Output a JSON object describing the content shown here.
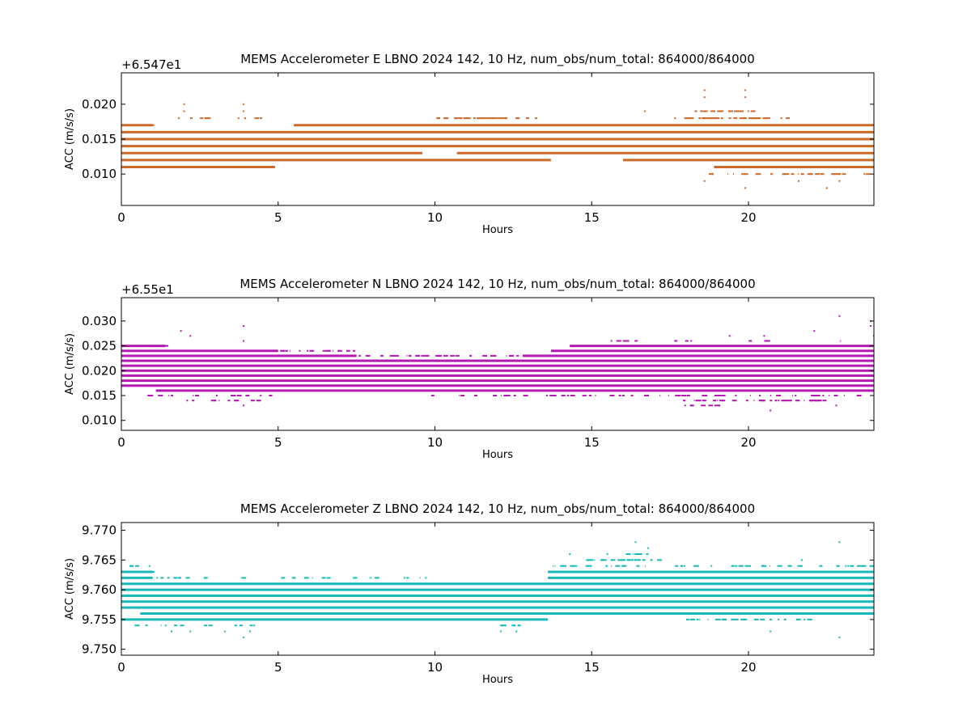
{
  "chart_data": [
    {
      "type": "scatter",
      "title": "MEMS Accelerometer E LBNO 2024 142, 10 Hz, num_obs/num_total: 864000/864000",
      "offset_label": "+6.547e1",
      "xlabel": "Hours",
      "ylabel": "ACC (m/s/s)",
      "xlim": [
        0,
        24
      ],
      "ylim": [
        0.0055,
        0.0245
      ],
      "xticks": [
        0,
        5,
        10,
        15,
        20
      ],
      "yticks": [
        0.01,
        0.015,
        0.02
      ],
      "ytick_labels": [
        "0.010",
        "0.015",
        "0.020"
      ],
      "xtick_labels": [
        "0",
        "5",
        "10",
        "15",
        "20"
      ],
      "color": "#cc6a2b",
      "grid": false,
      "dense_levels": [
        0.011,
        0.012,
        0.013,
        0.014,
        0.015,
        0.016,
        0.017
      ],
      "level_gaps": [
        {
          "level": 0.011,
          "from": 4.9,
          "to": 18.9
        },
        {
          "level": 0.012,
          "from": 13.7,
          "to": 16.0
        },
        {
          "level": 0.017,
          "from": 1.0,
          "to": 5.5
        },
        {
          "level": 0.013,
          "from": 9.6,
          "to": 10.7
        }
      ],
      "sparse_levels": [
        {
          "level": 0.017,
          "range": [
            0.2,
            1.0
          ],
          "count": 12
        },
        {
          "level": 0.018,
          "range": [
            1.3,
            4.5
          ],
          "count": 10
        },
        {
          "level": 0.018,
          "range": [
            10.0,
            13.2
          ],
          "count": 34
        },
        {
          "level": 0.018,
          "range": [
            17.6,
            21.3
          ],
          "count": 40
        },
        {
          "level": 0.019,
          "range": [
            18.2,
            20.2
          ],
          "count": 20
        },
        {
          "level": 0.011,
          "range": [
            0.3,
            3.0
          ],
          "count": 10
        },
        {
          "level": 0.01,
          "range": [
            18.5,
            23.9
          ],
          "count": 28
        }
      ],
      "outliers": [
        [
          2.0,
          0.02
        ],
        [
          2.0,
          0.019
        ],
        [
          3.9,
          0.02
        ],
        [
          3.9,
          0.019
        ],
        [
          3.9,
          0.011
        ],
        [
          2.7,
          0.011
        ],
        [
          18.6,
          0.022
        ],
        [
          18.6,
          0.021
        ],
        [
          19.9,
          0.022
        ],
        [
          19.9,
          0.021
        ],
        [
          18.6,
          0.009
        ],
        [
          19.9,
          0.008
        ],
        [
          22.5,
          0.008
        ],
        [
          22.9,
          0.009
        ],
        [
          21.6,
          0.009
        ],
        [
          16.7,
          0.019
        ],
        [
          4.5,
          0.012
        ],
        [
          4.6,
          0.012
        ],
        [
          23.7,
          0.01
        ]
      ]
    },
    {
      "type": "scatter",
      "title": "MEMS Accelerometer N LBNO 2024 142, 10 Hz, num_obs/num_total: 864000/864000",
      "offset_label": "+6.55e1",
      "xlabel": "Hours",
      "ylabel": "ACC (m/s/s)",
      "xlim": [
        0,
        24
      ],
      "ylim": [
        0.008,
        0.0347
      ],
      "xticks": [
        0,
        5,
        10,
        15,
        20
      ],
      "yticks": [
        0.01,
        0.015,
        0.02,
        0.025,
        0.03
      ],
      "ytick_labels": [
        "0.010",
        "0.015",
        "0.020",
        "0.025",
        "0.030"
      ],
      "xtick_labels": [
        "0",
        "5",
        "10",
        "15",
        "20"
      ],
      "color": "#b21ab2",
      "grid": false,
      "dense_levels": [
        0.016,
        0.017,
        0.018,
        0.019,
        0.02,
        0.021,
        0.022,
        0.023,
        0.024,
        0.025
      ],
      "level_gaps": [
        {
          "level": 0.025,
          "from": 1.4,
          "to": 14.3
        },
        {
          "level": 0.024,
          "from": 5.0,
          "to": 13.7
        },
        {
          "level": 0.023,
          "from": 7.5,
          "to": 12.8
        },
        {
          "level": 0.016,
          "from": 0.0,
          "to": 1.1
        }
      ],
      "sparse_levels": [
        {
          "level": 0.025,
          "range": [
            0.1,
            1.4
          ],
          "count": 10
        },
        {
          "level": 0.024,
          "range": [
            5.0,
            7.4
          ],
          "count": 22
        },
        {
          "level": 0.023,
          "range": [
            7.5,
            12.8
          ],
          "count": 36
        },
        {
          "level": 0.015,
          "range": [
            0.2,
            4.9
          ],
          "count": 20
        },
        {
          "level": 0.015,
          "range": [
            9.8,
            23.6
          ],
          "count": 60
        },
        {
          "level": 0.014,
          "range": [
            1.7,
            4.4
          ],
          "count": 10
        },
        {
          "level": 0.014,
          "range": [
            17.9,
            22.5
          ],
          "count": 40
        },
        {
          "level": 0.013,
          "range": [
            17.9,
            20.0
          ],
          "count": 10
        },
        {
          "level": 0.026,
          "range": [
            15.5,
            23.9
          ],
          "count": 12
        }
      ],
      "outliers": [
        [
          1.9,
          0.028
        ],
        [
          2.2,
          0.027
        ],
        [
          3.9,
          0.029
        ],
        [
          3.9,
          0.026
        ],
        [
          3.9,
          0.013
        ],
        [
          22.9,
          0.031
        ],
        [
          22.1,
          0.028
        ],
        [
          20.7,
          0.012
        ],
        [
          23.9,
          0.029
        ],
        [
          23.9,
          0.03
        ],
        [
          20.5,
          0.027
        ],
        [
          19.4,
          0.027
        ],
        [
          2.1,
          0.014
        ],
        [
          22.8,
          0.013
        ],
        [
          24.0,
          0.027
        ]
      ]
    },
    {
      "type": "scatter",
      "title": "MEMS Accelerometer Z LBNO 2024 142, 10 Hz, num_obs/num_total: 864000/864000",
      "offset_label": "",
      "xlabel": "Hours",
      "ylabel": "ACC (m/s/s)",
      "xlim": [
        0,
        24
      ],
      "ylim": [
        9.749,
        9.7713
      ],
      "xticks": [
        0,
        5,
        10,
        15,
        20
      ],
      "yticks": [
        9.75,
        9.755,
        9.76,
        9.765,
        9.77
      ],
      "ytick_labels": [
        "9.750",
        "9.755",
        "9.760",
        "9.765",
        "9.770"
      ],
      "xtick_labels": [
        "0",
        "5",
        "10",
        "15",
        "20"
      ],
      "color": "#1ab8b8",
      "grid": false,
      "dense_levels": [
        9.755,
        9.756,
        9.757,
        9.758,
        9.759,
        9.76,
        9.761,
        9.762,
        9.763
      ],
      "level_gaps": [
        {
          "level": 9.755,
          "from": 13.6,
          "to": 24.0
        },
        {
          "level": 9.762,
          "from": 1.0,
          "to": 13.6
        },
        {
          "level": 9.763,
          "from": 1.0,
          "to": 13.6
        },
        {
          "level": 9.756,
          "from": 0.0,
          "to": 0.6
        }
      ],
      "sparse_levels": [
        {
          "level": 9.762,
          "range": [
            1.0,
            10.5
          ],
          "count": 30
        },
        {
          "level": 9.763,
          "range": [
            0.1,
            1.0
          ],
          "count": 10
        },
        {
          "level": 9.764,
          "range": [
            0.1,
            1.0
          ],
          "count": 6
        },
        {
          "level": 9.764,
          "range": [
            13.6,
            23.9
          ],
          "count": 50
        },
        {
          "level": 9.765,
          "range": [
            14.8,
            17.3
          ],
          "count": 22
        },
        {
          "level": 9.766,
          "range": [
            15.9,
            16.8
          ],
          "count": 8
        },
        {
          "level": 9.754,
          "range": [
            0.3,
            4.5
          ],
          "count": 12
        },
        {
          "level": 9.754,
          "range": [
            12.0,
            12.7
          ],
          "count": 6
        },
        {
          "level": 9.755,
          "range": [
            18.0,
            22.0
          ],
          "count": 30
        }
      ],
      "outliers": [
        [
          16.4,
          9.768
        ],
        [
          22.9,
          9.768
        ],
        [
          22.9,
          9.752
        ],
        [
          3.9,
          9.752
        ],
        [
          4.1,
          9.753
        ],
        [
          1.6,
          9.753
        ],
        [
          2.2,
          9.753
        ],
        [
          3.3,
          9.753
        ],
        [
          12.1,
          9.753
        ],
        [
          12.6,
          9.753
        ],
        [
          15.5,
          9.766
        ],
        [
          21.7,
          9.765
        ],
        [
          20.7,
          9.753
        ],
        [
          16.8,
          9.767
        ],
        [
          14.3,
          9.766
        ]
      ]
    }
  ]
}
